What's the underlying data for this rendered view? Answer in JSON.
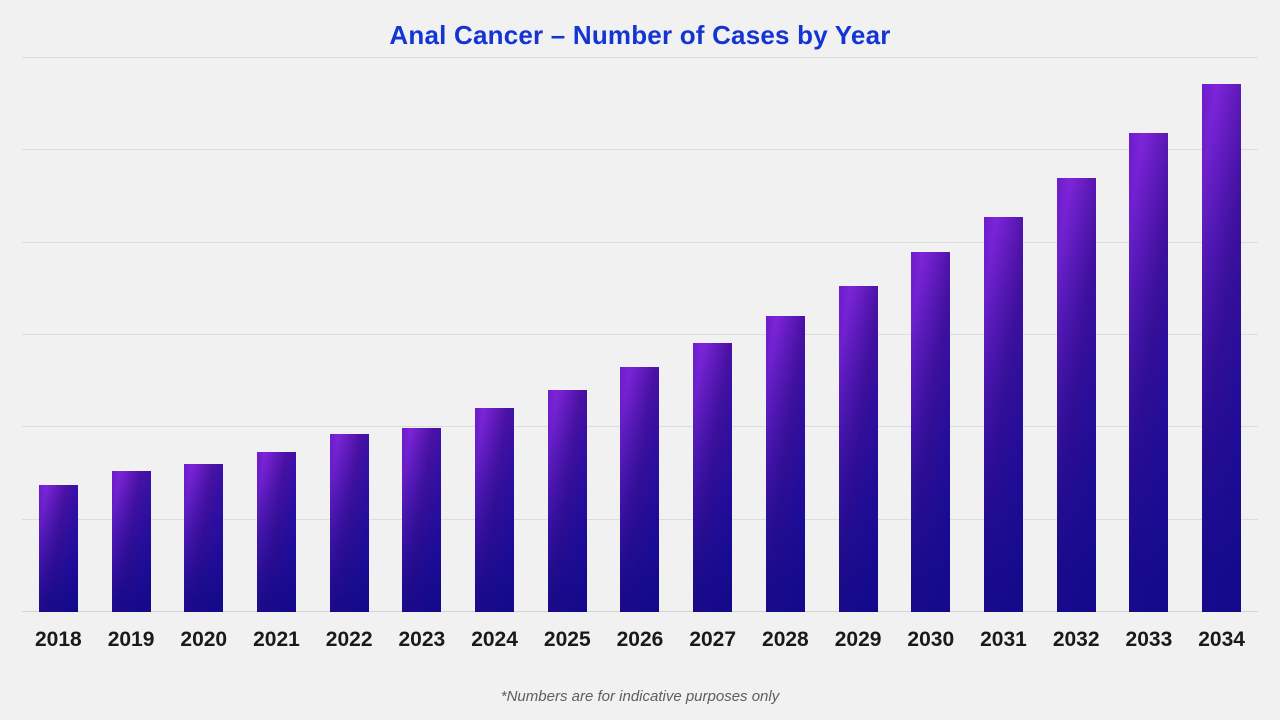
{
  "chart": {
    "title": "Anal Cancer – Number of Cases by Year",
    "footnote": "*Numbers are for indicative purposes only"
  },
  "colors": {
    "title": "#1435d4",
    "background": "#f1f1f2",
    "bar_gradient_top_left": "#7e25da",
    "bar_gradient_mid": "#4b12a4",
    "bar_gradient_bottom_right": "#160a8e",
    "gridline": "#dcdcdc",
    "year_label": "#1a1a1a",
    "footnote": "#5e5e5e"
  },
  "chart_data": {
    "type": "bar",
    "title": "Anal Cancer – Number of Cases by Year",
    "categories": [
      "2018",
      "2019",
      "2020",
      "2021",
      "2022",
      "2023",
      "2024",
      "2025",
      "2026",
      "2027",
      "2028",
      "2029",
      "2030",
      "2031",
      "2032",
      "2033",
      "2034"
    ],
    "values": [
      1.38,
      1.53,
      1.6,
      1.73,
      1.93,
      1.99,
      2.21,
      2.41,
      2.65,
      2.91,
      3.21,
      3.53,
      3.9,
      4.28,
      4.7,
      5.19,
      5.72
    ],
    "value_unit": "gridline intervals (y-axis has no tick labels; heights estimated from unlabeled gridlines)",
    "xlabel": "",
    "ylabel": "",
    "ylim": [
      0,
      6.2
    ],
    "grid": "horizontal gridlines only, 7 lines including baseline, unlabeled",
    "legend": "none",
    "annotations": [
      "*Numbers are for indicative purposes only"
    ]
  }
}
